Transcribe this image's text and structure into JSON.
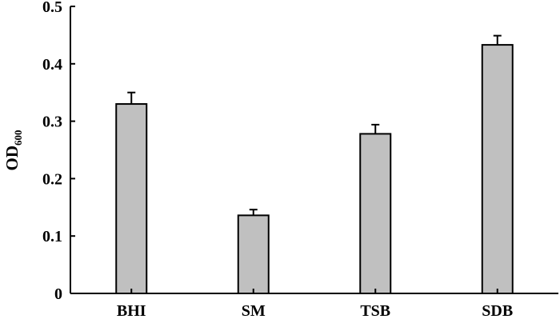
{
  "chart_data": {
    "type": "bar",
    "categories": [
      "BHI",
      "SM",
      "TSB",
      "SDB"
    ],
    "values": [
      0.33,
      0.136,
      0.278,
      0.433
    ],
    "errors": [
      0.02,
      0.01,
      0.016,
      0.016
    ],
    "ylabel": "OD",
    "ylabel_subscript": "600",
    "ylim": [
      0,
      0.5
    ],
    "yticks": [
      "0",
      "0.1",
      "0.2",
      "0.3",
      "0.4",
      "0.5"
    ],
    "grid": false,
    "bar_color": "#c0c0c0",
    "edge_color": "#000000"
  }
}
